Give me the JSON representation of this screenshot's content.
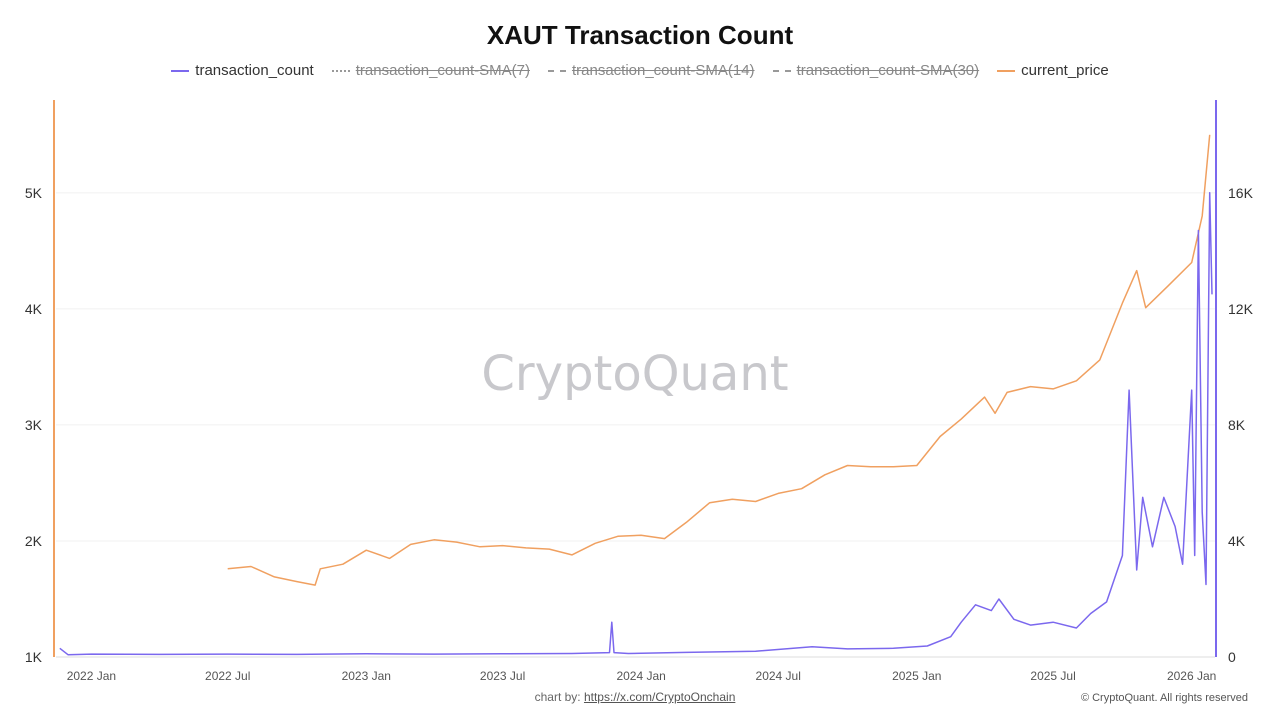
{
  "chart_data": {
    "type": "line",
    "title": "XAUT Transaction Count",
    "watermark": "CryptoQuant",
    "legend": [
      {
        "name": "transaction_count",
        "style": "solid",
        "color": "#7B68EE",
        "enabled": true
      },
      {
        "name": "transaction_count-SMA(7)",
        "style": "dotted",
        "color": "#999999",
        "enabled": false
      },
      {
        "name": "transaction_count-SMA(14)",
        "style": "dashed",
        "color": "#999999",
        "enabled": false
      },
      {
        "name": "transaction_count-SMA(30)",
        "style": "dashdot",
        "color": "#999999",
        "enabled": false
      },
      {
        "name": "current_price",
        "style": "solid",
        "color": "#F0A060",
        "enabled": true
      }
    ],
    "left_axis": {
      "series": "current_price",
      "ticks": [
        1000,
        2000,
        3000,
        4000,
        5000
      ],
      "tick_labels": [
        "1K",
        "2K",
        "3K",
        "4K",
        "5K"
      ],
      "range": [
        1000,
        5800
      ],
      "color": "#F0A060"
    },
    "right_axis": {
      "series": "transaction_count",
      "ticks": [
        0,
        4000,
        8000,
        12000,
        16000
      ],
      "tick_labels": [
        "0",
        "4K",
        "8K",
        "12K",
        "16K"
      ],
      "range": [
        0,
        19200
      ],
      "color": "#7B68EE"
    },
    "x_axis": {
      "range": [
        "2021-11-15",
        "2026-02-01"
      ],
      "ticks": [
        "2022-01-01",
        "2022-07-01",
        "2023-01-01",
        "2023-07-01",
        "2024-01-01",
        "2024-07-01",
        "2025-01-01",
        "2025-07-01",
        "2026-01-01"
      ],
      "tick_labels": [
        "2022 Jan",
        "2022 Jul",
        "2023 Jan",
        "2023 Jul",
        "2024 Jan",
        "2024 Jul",
        "2025 Jan",
        "2025 Jul",
        "2026 Jan"
      ]
    },
    "grid": true,
    "series": [
      {
        "name": "current_price",
        "x": [
          "2022-07-01",
          "2022-08-01",
          "2022-09-01",
          "2022-10-01",
          "2022-10-25",
          "2022-11-01",
          "2022-12-01",
          "2023-01-01",
          "2023-02-01",
          "2023-03-01",
          "2023-04-01",
          "2023-05-01",
          "2023-06-01",
          "2023-07-01",
          "2023-08-01",
          "2023-09-01",
          "2023-10-01",
          "2023-11-01",
          "2023-12-01",
          "2024-01-01",
          "2024-02-01",
          "2024-03-01",
          "2024-04-01",
          "2024-05-01",
          "2024-06-01",
          "2024-07-01",
          "2024-08-01",
          "2024-09-01",
          "2024-10-01",
          "2024-11-01",
          "2024-12-01",
          "2025-01-01",
          "2025-02-01",
          "2025-03-01",
          "2025-04-01",
          "2025-04-15",
          "2025-05-01",
          "2025-06-01",
          "2025-07-01",
          "2025-08-01",
          "2025-09-01",
          "2025-10-01",
          "2025-10-20",
          "2025-11-01",
          "2025-12-01",
          "2026-01-01",
          "2026-01-15",
          "2026-01-25"
        ],
        "y": [
          1760,
          1780,
          1690,
          1650,
          1620,
          1760,
          1800,
          1920,
          1850,
          1970,
          2010,
          1990,
          1950,
          1960,
          1940,
          1930,
          1880,
          1980,
          2040,
          2050,
          2020,
          2160,
          2330,
          2360,
          2340,
          2410,
          2450,
          2570,
          2650,
          2640,
          2640,
          2650,
          2900,
          3050,
          3240,
          3100,
          3280,
          3330,
          3310,
          3380,
          3560,
          4050,
          4330,
          4010,
          4200,
          4400,
          4800,
          5500
        ]
      },
      {
        "name": "transaction_count",
        "x": [
          "2021-11-20",
          "2021-12-01",
          "2022-01-01",
          "2022-04-01",
          "2022-07-01",
          "2022-10-01",
          "2023-01-01",
          "2023-04-01",
          "2023-07-01",
          "2023-10-01",
          "2023-11-20",
          "2023-11-23",
          "2023-11-26",
          "2023-12-15",
          "2024-03-01",
          "2024-06-01",
          "2024-08-15",
          "2024-10-01",
          "2024-12-01",
          "2025-01-15",
          "2025-02-15",
          "2025-03-01",
          "2025-03-20",
          "2025-04-10",
          "2025-04-20",
          "2025-05-10",
          "2025-06-01",
          "2025-07-01",
          "2025-08-01",
          "2025-08-20",
          "2025-09-10",
          "2025-10-01",
          "2025-10-10",
          "2025-10-20",
          "2025-10-28",
          "2025-11-10",
          "2025-11-25",
          "2025-12-10",
          "2025-12-20",
          "2026-01-01",
          "2026-01-05",
          "2026-01-10",
          "2026-01-15",
          "2026-01-20",
          "2026-01-25",
          "2026-01-28"
        ],
        "y": [
          300,
          80,
          100,
          90,
          100,
          90,
          110,
          100,
          110,
          120,
          150,
          1200,
          150,
          120,
          160,
          200,
          350,
          280,
          300,
          380,
          700,
          1200,
          1800,
          1600,
          2000,
          1300,
          1100,
          1200,
          1000,
          1500,
          1900,
          3500,
          9200,
          3000,
          5500,
          3800,
          5500,
          4500,
          3200,
          9200,
          3500,
          14700,
          5000,
          2500,
          16000,
          12500
        ]
      }
    ]
  },
  "footer": {
    "credit_prefix": "chart by: ",
    "credit_link": "https://x.com/CryptoOnchain",
    "copyright": "© CryptoQuant. All rights reserved"
  }
}
